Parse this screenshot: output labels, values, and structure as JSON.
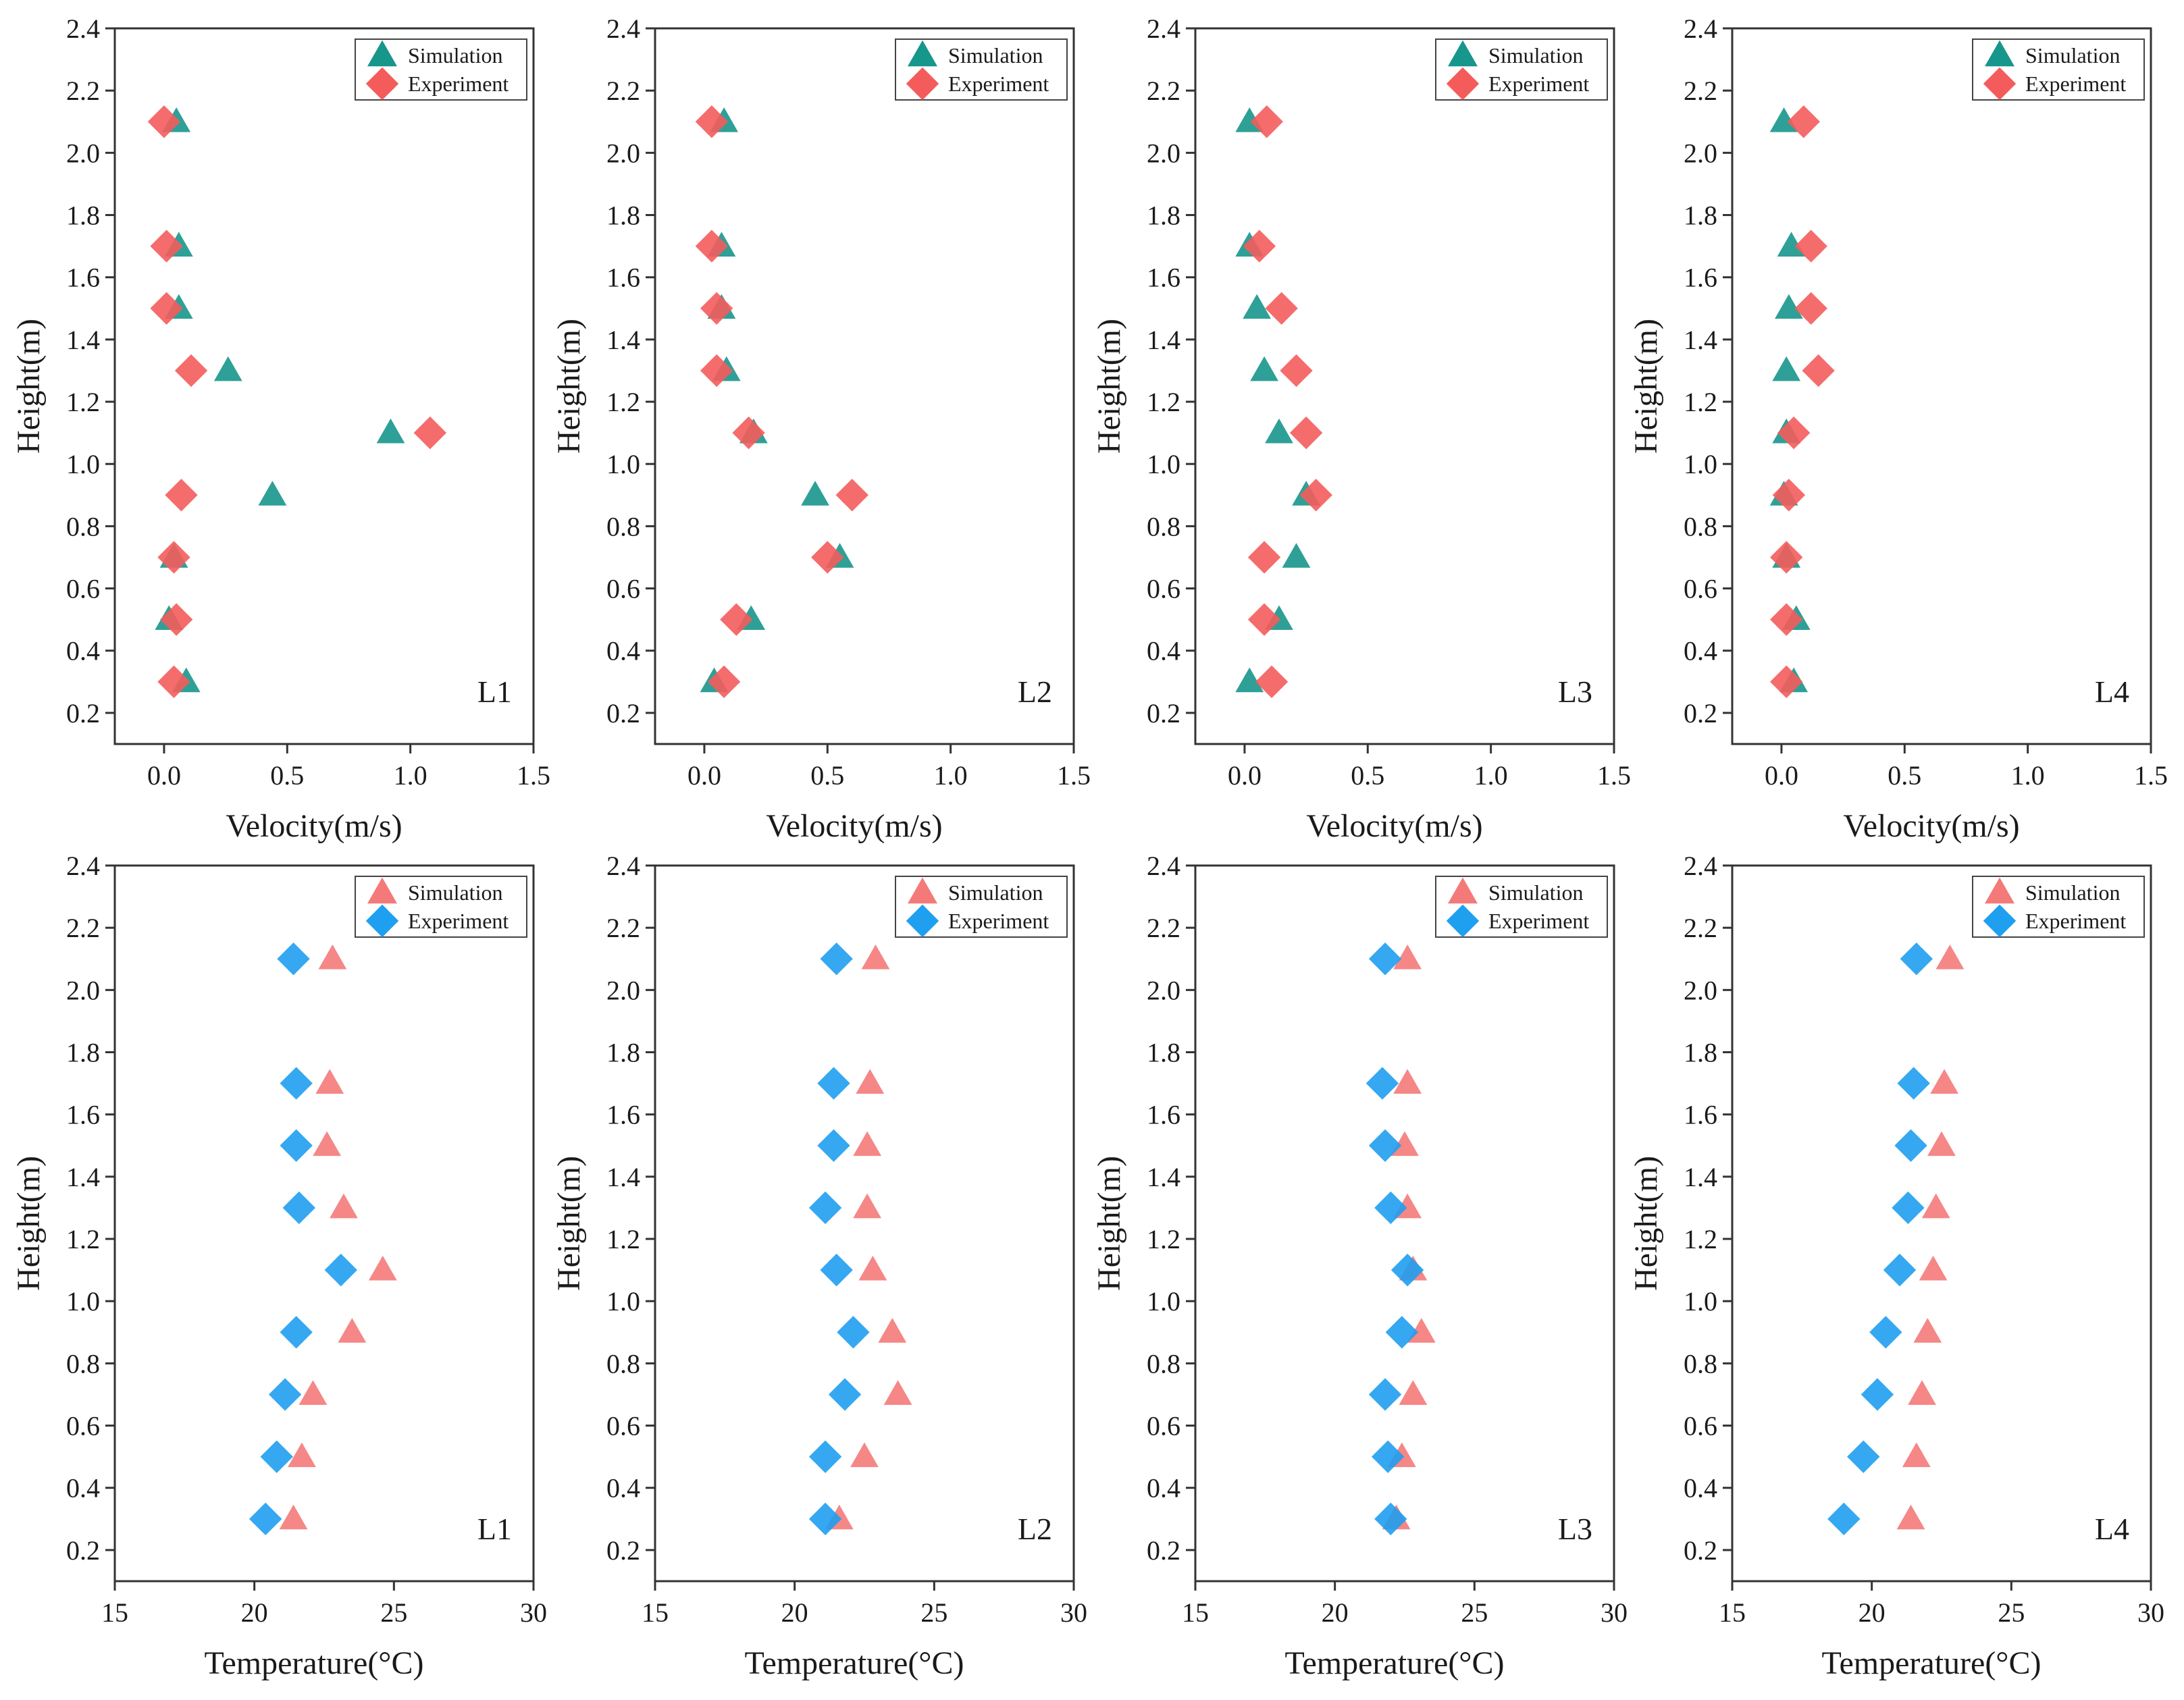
{
  "figure": {
    "colors": {
      "velocity_simulation": "#17968c",
      "velocity_experiment": "#f45c5c",
      "temperature_simulation": "#f47a7a",
      "temperature_experiment": "#1f9ff0"
    }
  },
  "chart_data": [
    {
      "type": "scatter",
      "panel": "L1",
      "xlabel": "Velocity(m/s)",
      "ylabel": "Height(m)",
      "xlim": [
        -0.2,
        1.5
      ],
      "ylim": [
        0.1,
        2.4
      ],
      "xticks": [
        0.0,
        0.5,
        1.0,
        1.5
      ],
      "xtick_labels": [
        "0.0",
        "0.5",
        "1.0",
        "1.5"
      ],
      "yticks": [
        0.2,
        0.4,
        0.6,
        0.8,
        1.0,
        1.2,
        1.4,
        1.6,
        1.8,
        2.0,
        2.2,
        2.4
      ],
      "ytick_labels": [
        "0.2",
        "0.4",
        "0.6",
        "0.8",
        "1.0",
        "1.2",
        "1.4",
        "1.6",
        "1.8",
        "2.0",
        "2.2",
        "2.4"
      ],
      "legend_position": "top-right",
      "y": [
        0.3,
        0.5,
        0.7,
        0.9,
        1.1,
        1.3,
        1.5,
        1.7,
        2.1
      ],
      "series": [
        {
          "name": "Simulation",
          "marker": "triangle",
          "color": "#17968c",
          "values": [
            0.09,
            0.02,
            0.04,
            0.44,
            0.92,
            0.26,
            0.06,
            0.06,
            0.05
          ]
        },
        {
          "name": "Experiment",
          "marker": "diamond",
          "color": "#f45c5c",
          "values": [
            0.04,
            0.05,
            0.04,
            0.07,
            1.08,
            0.11,
            0.01,
            0.01,
            0.0
          ]
        }
      ]
    },
    {
      "type": "scatter",
      "panel": "L2",
      "xlabel": "Velocity(m/s)",
      "ylabel": "Height(m)",
      "xlim": [
        -0.2,
        1.5
      ],
      "ylim": [
        0.1,
        2.4
      ],
      "xticks": [
        0.0,
        0.5,
        1.0,
        1.5
      ],
      "xtick_labels": [
        "0.0",
        "0.5",
        "1.0",
        "1.5"
      ],
      "yticks": [
        0.2,
        0.4,
        0.6,
        0.8,
        1.0,
        1.2,
        1.4,
        1.6,
        1.8,
        2.0,
        2.2,
        2.4
      ],
      "ytick_labels": [
        "0.2",
        "0.4",
        "0.6",
        "0.8",
        "1.0",
        "1.2",
        "1.4",
        "1.6",
        "1.8",
        "2.0",
        "2.2",
        "2.4"
      ],
      "legend_position": "top-right",
      "y": [
        0.3,
        0.5,
        0.7,
        0.9,
        1.1,
        1.3,
        1.5,
        1.7,
        2.1
      ],
      "series": [
        {
          "name": "Simulation",
          "marker": "triangle",
          "color": "#17968c",
          "values": [
            0.04,
            0.19,
            0.55,
            0.45,
            0.2,
            0.09,
            0.07,
            0.07,
            0.08
          ]
        },
        {
          "name": "Experiment",
          "marker": "diamond",
          "color": "#f45c5c",
          "values": [
            0.08,
            0.13,
            0.5,
            0.6,
            0.18,
            0.05,
            0.05,
            0.03,
            0.03
          ]
        }
      ]
    },
    {
      "type": "scatter",
      "panel": "L3",
      "xlabel": "Velocity(m/s)",
      "ylabel": "Height(m)",
      "xlim": [
        -0.2,
        1.5
      ],
      "ylim": [
        0.1,
        2.4
      ],
      "xticks": [
        0.0,
        0.5,
        1.0,
        1.5
      ],
      "xtick_labels": [
        "0.0",
        "0.5",
        "1.0",
        "1.5"
      ],
      "yticks": [
        0.2,
        0.4,
        0.6,
        0.8,
        1.0,
        1.2,
        1.4,
        1.6,
        1.8,
        2.0,
        2.2,
        2.4
      ],
      "ytick_labels": [
        "0.2",
        "0.4",
        "0.6",
        "0.8",
        "1.0",
        "1.2",
        "1.4",
        "1.6",
        "1.8",
        "2.0",
        "2.2",
        "2.4"
      ],
      "legend_position": "top-right",
      "y": [
        0.3,
        0.5,
        0.7,
        0.9,
        1.1,
        1.3,
        1.5,
        1.7,
        2.1
      ],
      "series": [
        {
          "name": "Simulation",
          "marker": "triangle",
          "color": "#17968c",
          "values": [
            0.02,
            0.14,
            0.21,
            0.25,
            0.14,
            0.08,
            0.05,
            0.02,
            0.02
          ]
        },
        {
          "name": "Experiment",
          "marker": "diamond",
          "color": "#f45c5c",
          "values": [
            0.11,
            0.08,
            0.08,
            0.29,
            0.25,
            0.21,
            0.15,
            0.06,
            0.09
          ]
        }
      ]
    },
    {
      "type": "scatter",
      "panel": "L4",
      "xlabel": "Velocity(m/s)",
      "ylabel": "Height(m)",
      "xlim": [
        -0.2,
        1.5
      ],
      "ylim": [
        0.1,
        2.4
      ],
      "xticks": [
        0.0,
        0.5,
        1.0,
        1.5
      ],
      "xtick_labels": [
        "0.0",
        "0.5",
        "1.0",
        "1.5"
      ],
      "yticks": [
        0.2,
        0.4,
        0.6,
        0.8,
        1.0,
        1.2,
        1.4,
        1.6,
        1.8,
        2.0,
        2.2,
        2.4
      ],
      "ytick_labels": [
        "0.2",
        "0.4",
        "0.6",
        "0.8",
        "1.0",
        "1.2",
        "1.4",
        "1.6",
        "1.8",
        "2.0",
        "2.2",
        "2.4"
      ],
      "legend_position": "top-right",
      "y": [
        0.3,
        0.5,
        0.7,
        0.9,
        1.1,
        1.3,
        1.5,
        1.7,
        2.1
      ],
      "series": [
        {
          "name": "Simulation",
          "marker": "triangle",
          "color": "#17968c",
          "values": [
            0.05,
            0.06,
            0.02,
            0.01,
            0.02,
            0.02,
            0.03,
            0.04,
            0.01
          ]
        },
        {
          "name": "Experiment",
          "marker": "diamond",
          "color": "#f45c5c",
          "values": [
            0.02,
            0.02,
            0.02,
            0.03,
            0.05,
            0.15,
            0.12,
            0.12,
            0.09
          ]
        }
      ]
    },
    {
      "type": "scatter",
      "panel": "L1",
      "xlabel": "Temperature(°C)",
      "ylabel": "Height(m)",
      "xlim": [
        15,
        30
      ],
      "ylim": [
        0.1,
        2.4
      ],
      "xticks": [
        15,
        20,
        25,
        30
      ],
      "xtick_labels": [
        "15",
        "20",
        "25",
        "30"
      ],
      "yticks": [
        0.2,
        0.4,
        0.6,
        0.8,
        1.0,
        1.2,
        1.4,
        1.6,
        1.8,
        2.0,
        2.2,
        2.4
      ],
      "ytick_labels": [
        "0.2",
        "0.4",
        "0.6",
        "0.8",
        "1.0",
        "1.2",
        "1.4",
        "1.6",
        "1.8",
        "2.0",
        "2.2",
        "2.4"
      ],
      "legend_position": "top-right",
      "y": [
        0.3,
        0.5,
        0.7,
        0.9,
        1.1,
        1.3,
        1.5,
        1.7,
        2.1
      ],
      "series": [
        {
          "name": "Simulation",
          "marker": "triangle",
          "color": "#f47a7a",
          "values": [
            21.4,
            21.7,
            22.1,
            23.5,
            24.6,
            23.2,
            22.6,
            22.7,
            22.8
          ]
        },
        {
          "name": "Experiment",
          "marker": "diamond",
          "color": "#1f9ff0",
          "values": [
            20.4,
            20.8,
            21.1,
            21.5,
            23.1,
            21.6,
            21.5,
            21.5,
            21.4
          ]
        }
      ]
    },
    {
      "type": "scatter",
      "panel": "L2",
      "xlabel": "Temperature(°C)",
      "ylabel": "Height(m)",
      "xlim": [
        15,
        30
      ],
      "ylim": [
        0.1,
        2.4
      ],
      "xticks": [
        15,
        20,
        25,
        30
      ],
      "xtick_labels": [
        "15",
        "20",
        "25",
        "30"
      ],
      "yticks": [
        0.2,
        0.4,
        0.6,
        0.8,
        1.0,
        1.2,
        1.4,
        1.6,
        1.8,
        2.0,
        2.2,
        2.4
      ],
      "ytick_labels": [
        "0.2",
        "0.4",
        "0.6",
        "0.8",
        "1.0",
        "1.2",
        "1.4",
        "1.6",
        "1.8",
        "2.0",
        "2.2",
        "2.4"
      ],
      "legend_position": "top-right",
      "y": [
        0.3,
        0.5,
        0.7,
        0.9,
        1.1,
        1.3,
        1.5,
        1.7,
        2.1
      ],
      "series": [
        {
          "name": "Simulation",
          "marker": "triangle",
          "color": "#f47a7a",
          "values": [
            21.6,
            22.5,
            23.7,
            23.5,
            22.8,
            22.6,
            22.6,
            22.7,
            22.9
          ]
        },
        {
          "name": "Experiment",
          "marker": "diamond",
          "color": "#1f9ff0",
          "values": [
            21.1,
            21.1,
            21.8,
            22.1,
            21.5,
            21.1,
            21.4,
            21.4,
            21.5
          ]
        }
      ]
    },
    {
      "type": "scatter",
      "panel": "L3",
      "xlabel": "Temperature(°C)",
      "ylabel": "Height(m)",
      "xlim": [
        15,
        30
      ],
      "ylim": [
        0.1,
        2.4
      ],
      "xticks": [
        15,
        20,
        25,
        30
      ],
      "xtick_labels": [
        "15",
        "20",
        "25",
        "30"
      ],
      "yticks": [
        0.2,
        0.4,
        0.6,
        0.8,
        1.0,
        1.2,
        1.4,
        1.6,
        1.8,
        2.0,
        2.2,
        2.4
      ],
      "ytick_labels": [
        "0.2",
        "0.4",
        "0.6",
        "0.8",
        "1.0",
        "1.2",
        "1.4",
        "1.6",
        "1.8",
        "2.0",
        "2.2",
        "2.4"
      ],
      "legend_position": "top-right",
      "y": [
        0.3,
        0.5,
        0.7,
        0.9,
        1.1,
        1.3,
        1.5,
        1.7,
        2.1
      ],
      "series": [
        {
          "name": "Simulation",
          "marker": "triangle",
          "color": "#f47a7a",
          "values": [
            22.2,
            22.4,
            22.8,
            23.1,
            22.8,
            22.6,
            22.5,
            22.6,
            22.6
          ]
        },
        {
          "name": "Experiment",
          "marker": "diamond",
          "color": "#1f9ff0",
          "values": [
            22.0,
            21.9,
            21.8,
            22.4,
            22.6,
            22.0,
            21.8,
            21.7,
            21.8
          ]
        }
      ]
    },
    {
      "type": "scatter",
      "panel": "L4",
      "xlabel": "Temperature(°C)",
      "ylabel": "Height(m)",
      "xlim": [
        15,
        30
      ],
      "ylim": [
        0.1,
        2.4
      ],
      "xticks": [
        15,
        20,
        25,
        30
      ],
      "xtick_labels": [
        "15",
        "20",
        "25",
        "30"
      ],
      "yticks": [
        0.2,
        0.4,
        0.6,
        0.8,
        1.0,
        1.2,
        1.4,
        1.6,
        1.8,
        2.0,
        2.2,
        2.4
      ],
      "ytick_labels": [
        "0.2",
        "0.4",
        "0.6",
        "0.8",
        "1.0",
        "1.2",
        "1.4",
        "1.6",
        "1.8",
        "2.0",
        "2.2",
        "2.4"
      ],
      "legend_position": "top-right",
      "y": [
        0.3,
        0.5,
        0.7,
        0.9,
        1.1,
        1.3,
        1.5,
        1.7,
        2.1
      ],
      "series": [
        {
          "name": "Simulation",
          "marker": "triangle",
          "color": "#f47a7a",
          "values": [
            21.4,
            21.6,
            21.8,
            22.0,
            22.2,
            22.3,
            22.5,
            22.6,
            22.8
          ]
        },
        {
          "name": "Experiment",
          "marker": "diamond",
          "color": "#1f9ff0",
          "values": [
            19.0,
            19.7,
            20.2,
            20.5,
            21.0,
            21.3,
            21.4,
            21.5,
            21.6
          ]
        }
      ]
    }
  ]
}
